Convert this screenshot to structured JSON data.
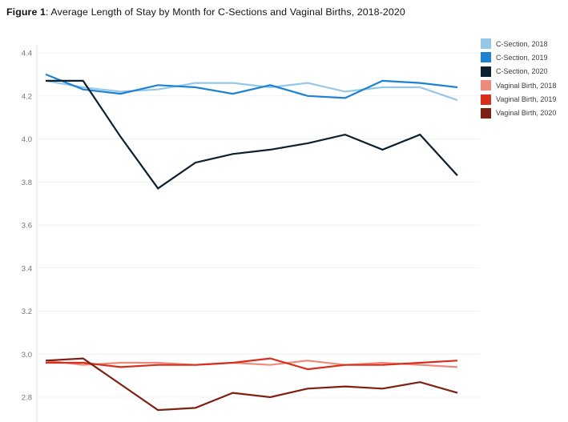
{
  "title": {
    "label": "Figure 1",
    "rest": ": Average Length of Stay by Month for C-Sections and Vaginal Births, 2018-2020"
  },
  "axis": {
    "y_ticks": [
      "4.4",
      "4.2",
      "4.0",
      "3.8",
      "3.6",
      "3.4",
      "3.2",
      "3.0",
      "2.8"
    ],
    "y_tick_color": "#757575",
    "gridline_color": "#f1f1f4",
    "axis_line_color": "#e2e2e6"
  },
  "chart_data": {
    "type": "line",
    "title": "Figure 1: Average Length of Stay by Month for C-Sections and Vaginal Births, 2018-2020",
    "xlabel": "",
    "ylabel": "",
    "x_axis_labels_visible": false,
    "x": [
      1,
      2,
      3,
      4,
      5,
      6,
      7,
      8,
      9,
      10,
      11,
      12
    ],
    "y_tick_values": [
      4.4,
      4.2,
      4.0,
      3.8,
      3.6,
      3.4,
      3.2,
      3.0,
      2.8
    ],
    "legend_position": "top-right",
    "grid": true,
    "series": [
      {
        "name": "C-Section, 2018",
        "color": "#96c7e8",
        "values": [
          4.27,
          4.24,
          4.22,
          4.23,
          4.26,
          4.26,
          4.24,
          4.26,
          4.22,
          4.24,
          4.24,
          4.18
        ]
      },
      {
        "name": "C-Section, 2019",
        "color": "#1e82d2",
        "values": [
          4.3,
          4.23,
          4.21,
          4.25,
          4.24,
          4.21,
          4.25,
          4.2,
          4.19,
          4.27,
          4.26,
          4.24
        ]
      },
      {
        "name": "C-Section, 2020",
        "color": "#0d2030",
        "values": [
          4.27,
          4.27,
          4.01,
          3.77,
          3.89,
          3.93,
          3.95,
          3.98,
          4.02,
          3.95,
          4.02,
          3.83
        ]
      },
      {
        "name": "Vaginal Birth, 2018",
        "color": "#ee8a7b",
        "values": [
          2.97,
          2.95,
          2.96,
          2.96,
          2.95,
          2.96,
          2.95,
          2.97,
          2.95,
          2.96,
          2.95,
          2.94
        ]
      },
      {
        "name": "Vaginal Birth, 2019",
        "color": "#d5301d",
        "values": [
          2.96,
          2.96,
          2.94,
          2.95,
          2.95,
          2.96,
          2.98,
          2.93,
          2.95,
          2.95,
          2.96,
          2.97
        ]
      },
      {
        "name": "Vaginal Birth, 2020",
        "color": "#7e2012",
        "values": [
          2.97,
          2.98,
          2.86,
          2.74,
          2.75,
          2.82,
          2.8,
          2.84,
          2.85,
          2.84,
          2.87,
          2.82
        ]
      }
    ]
  }
}
